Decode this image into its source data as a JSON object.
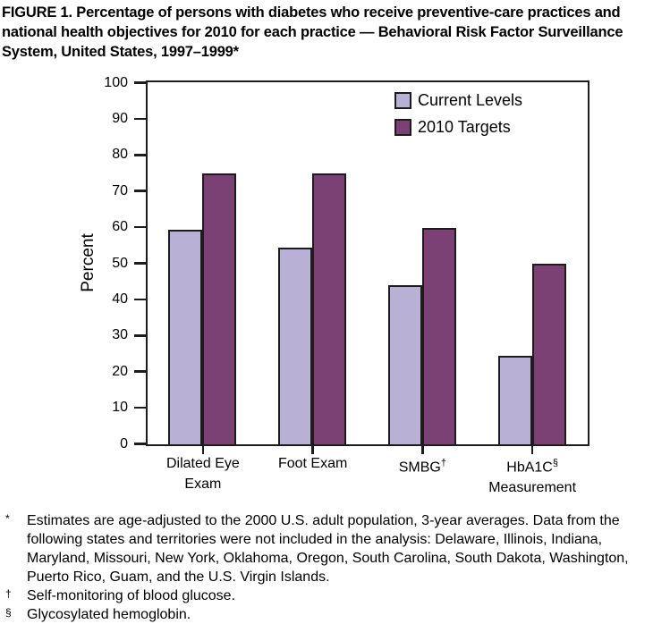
{
  "title": "FIGURE 1. Percentage of persons with diabetes who receive preventive-care practices and national health objectives for 2010 for each practice — Behavioral Risk Factor Surveillance System, United States, 1997–1999*",
  "chart_data": {
    "type": "bar",
    "title": "",
    "xlabel": "",
    "ylabel": "Percent",
    "ylim": [
      0,
      100
    ],
    "ytick_step": 10,
    "grid": false,
    "legend_position": "top-right-inside",
    "axis_color": "#1c1c1a",
    "categories": [
      {
        "lines": [
          {
            "text": "Dilated Eye"
          },
          {
            "text": "Exam"
          }
        ]
      },
      {
        "lines": [
          {
            "text": "Foot Exam"
          }
        ]
      },
      {
        "lines": [
          {
            "text": "SMBG",
            "sup": "†"
          }
        ]
      },
      {
        "lines": [
          {
            "text": "HbA1C",
            "sup": "§"
          },
          {
            "text": "Measurement"
          }
        ]
      }
    ],
    "series": [
      {
        "name": "Current Levels",
        "color": "#b8b1d5",
        "values": [
          59.5,
          54.5,
          44,
          24.5
        ]
      },
      {
        "name": "2010 Targets",
        "color": "#7b4074",
        "values": [
          75,
          75,
          60,
          50
        ]
      }
    ]
  },
  "footnotes": [
    {
      "marker": "*",
      "text": "Estimates are age-adjusted to the 2000 U.S. adult population, 3-year averages. Data from the following states and territories were not included in the analysis: Delaware, Illinois, Indiana, Maryland, Missouri, New York, Oklahoma, Oregon, South Carolina, South Dakota, Washington, Puerto Rico, Guam, and the U.S. Virgin Islands."
    },
    {
      "marker": "†",
      "text": "Self-monitoring of blood glucose."
    },
    {
      "marker": "§",
      "text": "Glycosylated hemoglobin."
    }
  ]
}
